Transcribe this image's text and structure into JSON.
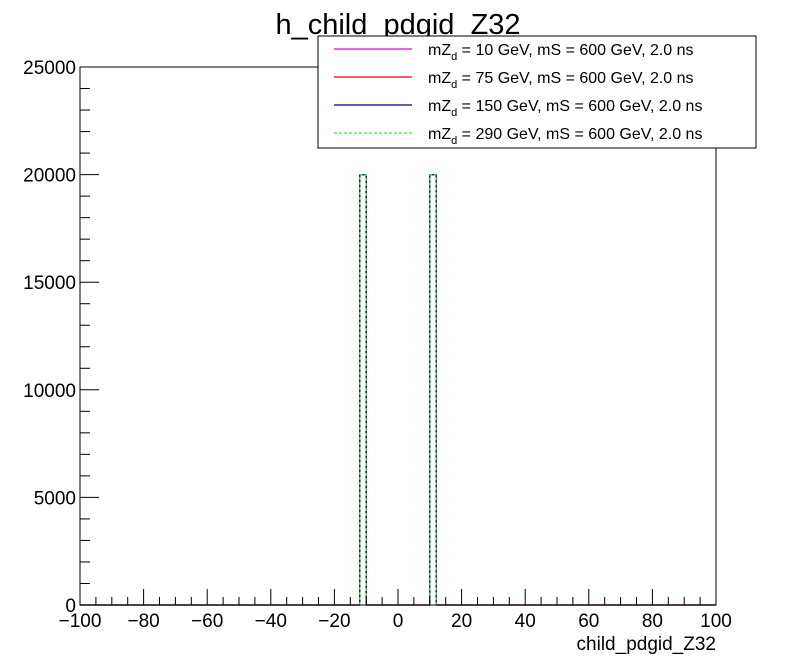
{
  "chart_data": {
    "type": "histogram",
    "title": "h_child_pdgid_Z32",
    "xlabel": "child_pdgid_Z32",
    "ylabel": "",
    "xlim": [
      -100,
      100
    ],
    "ylim": [
      0,
      25000
    ],
    "x_ticks": [
      -100,
      -80,
      -60,
      -40,
      -20,
      0,
      20,
      40,
      60,
      80,
      100
    ],
    "y_ticks": [
      0,
      5000,
      10000,
      15000,
      20000,
      25000
    ],
    "bin_width": 2,
    "grid": false,
    "legend_position": "top-right",
    "series": [
      {
        "legend_prefix": "mZ",
        "legend_sub": "d",
        "legend_suffix": " = 10 GeV, mS = 600 GeV, 2.0 ns",
        "color": "#e400e4",
        "dashed": false,
        "bins": [
          {
            "x0": -12,
            "x1": -10,
            "value": 20000
          },
          {
            "x0": 10,
            "x1": 12,
            "value": 20000
          }
        ]
      },
      {
        "legend_prefix": "mZ",
        "legend_sub": "d",
        "legend_suffix": " = 75 GeV, mS = 600 GeV, 2.0 ns",
        "color": "#e00000",
        "dashed": false,
        "bins": [
          {
            "x0": -12,
            "x1": -10,
            "value": 20000
          },
          {
            "x0": 10,
            "x1": 12,
            "value": 20000
          }
        ]
      },
      {
        "legend_prefix": "mZ",
        "legend_sub": "d",
        "legend_suffix": " = 150 GeV, mS = 600 GeV, 2.0 ns",
        "color": "#000090",
        "dashed": false,
        "bins": [
          {
            "x0": -12,
            "x1": -10,
            "value": 20000
          },
          {
            "x0": 10,
            "x1": 12,
            "value": 20000
          }
        ]
      },
      {
        "legend_prefix": "mZ",
        "legend_sub": "d",
        "legend_suffix": " = 290 GeV, mS = 600 GeV, 2.0 ns",
        "color": "#33ee33",
        "dashed": true,
        "bins": [
          {
            "x0": -12,
            "x1": -10,
            "value": 20000
          },
          {
            "x0": 10,
            "x1": 12,
            "value": 20000
          }
        ]
      }
    ]
  }
}
